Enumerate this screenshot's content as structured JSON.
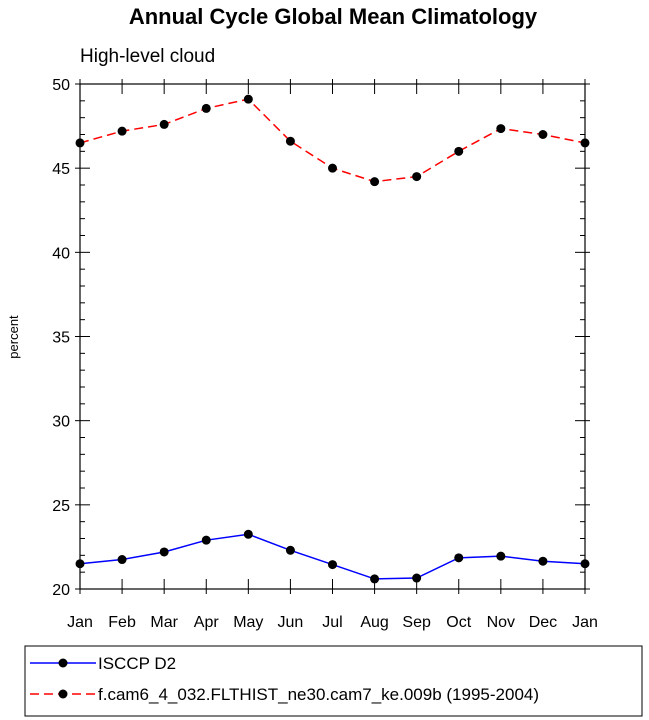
{
  "chart_data": {
    "type": "line",
    "title": "Annual Cycle Global Mean Climatology",
    "subtitle": "High-level cloud",
    "xlabel": "",
    "ylabel": "percent",
    "categories": [
      "Jan",
      "Feb",
      "Mar",
      "Apr",
      "May",
      "Jun",
      "Jul",
      "Aug",
      "Sep",
      "Oct",
      "Nov",
      "Dec",
      "Jan"
    ],
    "ylim": [
      20,
      50
    ],
    "yticks": [
      20,
      25,
      30,
      35,
      40,
      45,
      50
    ],
    "ytick_labels": [
      "20",
      "25",
      "30",
      "35",
      "40",
      "45",
      "50"
    ],
    "grid": false,
    "legend_position": "bottom",
    "series": [
      {
        "name": "ISCCP D2",
        "color": "#0000ff",
        "style": "solid",
        "values": [
          21.5,
          21.75,
          22.2,
          22.9,
          23.25,
          22.3,
          21.45,
          20.6,
          20.65,
          21.85,
          21.95,
          21.65,
          21.5
        ]
      },
      {
        "name": "f.cam6_4_032.FLTHIST_ne30.cam7_ke.009b (1995-2004)",
        "color": "#ff0000",
        "style": "dashed",
        "values": [
          46.5,
          47.2,
          47.6,
          48.55,
          49.1,
          46.6,
          45.0,
          44.2,
          44.5,
          46.0,
          47.35,
          47.0,
          46.5
        ]
      }
    ]
  }
}
